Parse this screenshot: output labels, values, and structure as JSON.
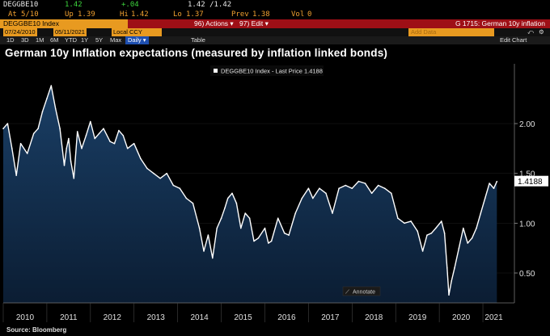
{
  "quote": {
    "ticker": "DEGGBE10",
    "last": "1.42",
    "change": "+.04",
    "bid_ask": "1.42 /1.42",
    "at_label": "At",
    "at_value": "5/10",
    "up_label": "Up",
    "up_value": "1.39",
    "hi_label": "Hi",
    "hi_value": "1.42",
    "lo_label": "Lo",
    "lo_value": "1.37",
    "prev_label": "Prev",
    "prev_value": "1.38",
    "vol_label": "Vol",
    "vol_value": "0"
  },
  "command_bar": {
    "security": "DEGGBE10 Index",
    "actions": "96) Actions ▾",
    "edit": "97) Edit ▾",
    "page_ref": "G 1715: German 10y inflation"
  },
  "toolbar": {
    "start_date": "07/24/2010",
    "end_date": "05/11/2021",
    "currency": "Local CCY",
    "table_label": "Table",
    "add_data": "Add Data",
    "edit_chart": "Edit Chart",
    "undo_icon": "undo-icon",
    "settings_icon": "gear-icon"
  },
  "ranges": [
    "1D",
    "3D",
    "1M",
    "6M",
    "YTD",
    "1Y",
    "5Y",
    "Max"
  ],
  "frequency": "Daily ▾",
  "chart_title": "German 10y Inflation expectations (measured by inflation linked bonds)",
  "source": "Source: Bloomberg",
  "annotate_label": "Annotate",
  "colors": {
    "background": "#000000",
    "area_top": "#1a3f66",
    "area_bottom": "#0b1d33",
    "line": "#ffffff",
    "accent": "#e89a20",
    "command_bar": "#9e0f16"
  },
  "chart_data": {
    "type": "area",
    "legend": "DEGGBE10 Index - Last Price 1.4188",
    "last_value_label": "1.4188",
    "last_value": 1.4188,
    "y_ticks": [
      "2.00",
      "1.50",
      "1.00",
      "0.50"
    ],
    "y_tick_values": [
      2.0,
      1.5,
      1.0,
      0.5
    ],
    "ylim": [
      0.2,
      2.6
    ],
    "x_tick_labels": [
      "2010",
      "2011",
      "2012",
      "2013",
      "2014",
      "2015",
      "2016",
      "2017",
      "2018",
      "2019",
      "2020",
      "2021"
    ],
    "x_range": [
      2010.0,
      2021.5
    ],
    "x": [
      2010.0,
      2010.1,
      2010.2,
      2010.3,
      2010.4,
      2010.55,
      2010.7,
      2010.8,
      2010.9,
      2011.0,
      2011.1,
      2011.2,
      2011.3,
      2011.4,
      2011.45,
      2011.5,
      2011.55,
      2011.62,
      2011.7,
      2011.8,
      2011.9,
      2012.0,
      2012.1,
      2012.2,
      2012.3,
      2012.45,
      2012.55,
      2012.65,
      2012.75,
      2012.85,
      2013.0,
      2013.15,
      2013.3,
      2013.45,
      2013.6,
      2013.75,
      2013.9,
      2014.05,
      2014.2,
      2014.35,
      2014.5,
      2014.6,
      2014.7,
      2014.8,
      2014.9,
      2015.0,
      2015.08,
      2015.15,
      2015.25,
      2015.35,
      2015.45,
      2015.55,
      2015.65,
      2015.75,
      2015.85,
      2016.0,
      2016.08,
      2016.15,
      2016.3,
      2016.45,
      2016.55,
      2016.7,
      2016.85,
      2017.0,
      2017.1,
      2017.25,
      2017.4,
      2017.55,
      2017.7,
      2017.85,
      2018.0,
      2018.15,
      2018.3,
      2018.45,
      2018.6,
      2018.75,
      2018.9,
      2019.05,
      2019.2,
      2019.35,
      2019.5,
      2019.62,
      2019.72,
      2019.82,
      2019.92,
      2020.05,
      2020.12,
      2020.18,
      2020.22,
      2020.28,
      2020.35,
      2020.45,
      2020.55,
      2020.65,
      2020.75,
      2020.85,
      2020.95,
      2021.05,
      2021.15,
      2021.25,
      2021.32
    ],
    "values": [
      1.95,
      2.0,
      1.75,
      1.48,
      1.8,
      1.7,
      1.9,
      1.95,
      2.12,
      2.25,
      2.38,
      2.15,
      1.95,
      1.58,
      1.75,
      1.85,
      1.62,
      1.45,
      1.92,
      1.75,
      1.88,
      2.02,
      1.85,
      1.9,
      1.95,
      1.82,
      1.8,
      1.93,
      1.88,
      1.75,
      1.8,
      1.65,
      1.55,
      1.5,
      1.45,
      1.5,
      1.38,
      1.35,
      1.25,
      1.2,
      0.95,
      0.72,
      0.88,
      0.65,
      0.95,
      1.05,
      1.15,
      1.25,
      1.3,
      1.2,
      0.95,
      1.1,
      1.05,
      0.82,
      0.85,
      0.95,
      0.8,
      0.82,
      1.05,
      0.9,
      0.88,
      1.1,
      1.25,
      1.35,
      1.25,
      1.35,
      1.3,
      1.1,
      1.35,
      1.38,
      1.35,
      1.42,
      1.4,
      1.3,
      1.38,
      1.35,
      1.3,
      1.05,
      1.0,
      1.02,
      0.92,
      0.72,
      0.88,
      0.9,
      0.95,
      1.02,
      0.9,
      0.55,
      0.28,
      0.42,
      0.55,
      0.75,
      0.95,
      0.8,
      0.85,
      0.95,
      1.1,
      1.25,
      1.4,
      1.35,
      1.4188
    ]
  }
}
